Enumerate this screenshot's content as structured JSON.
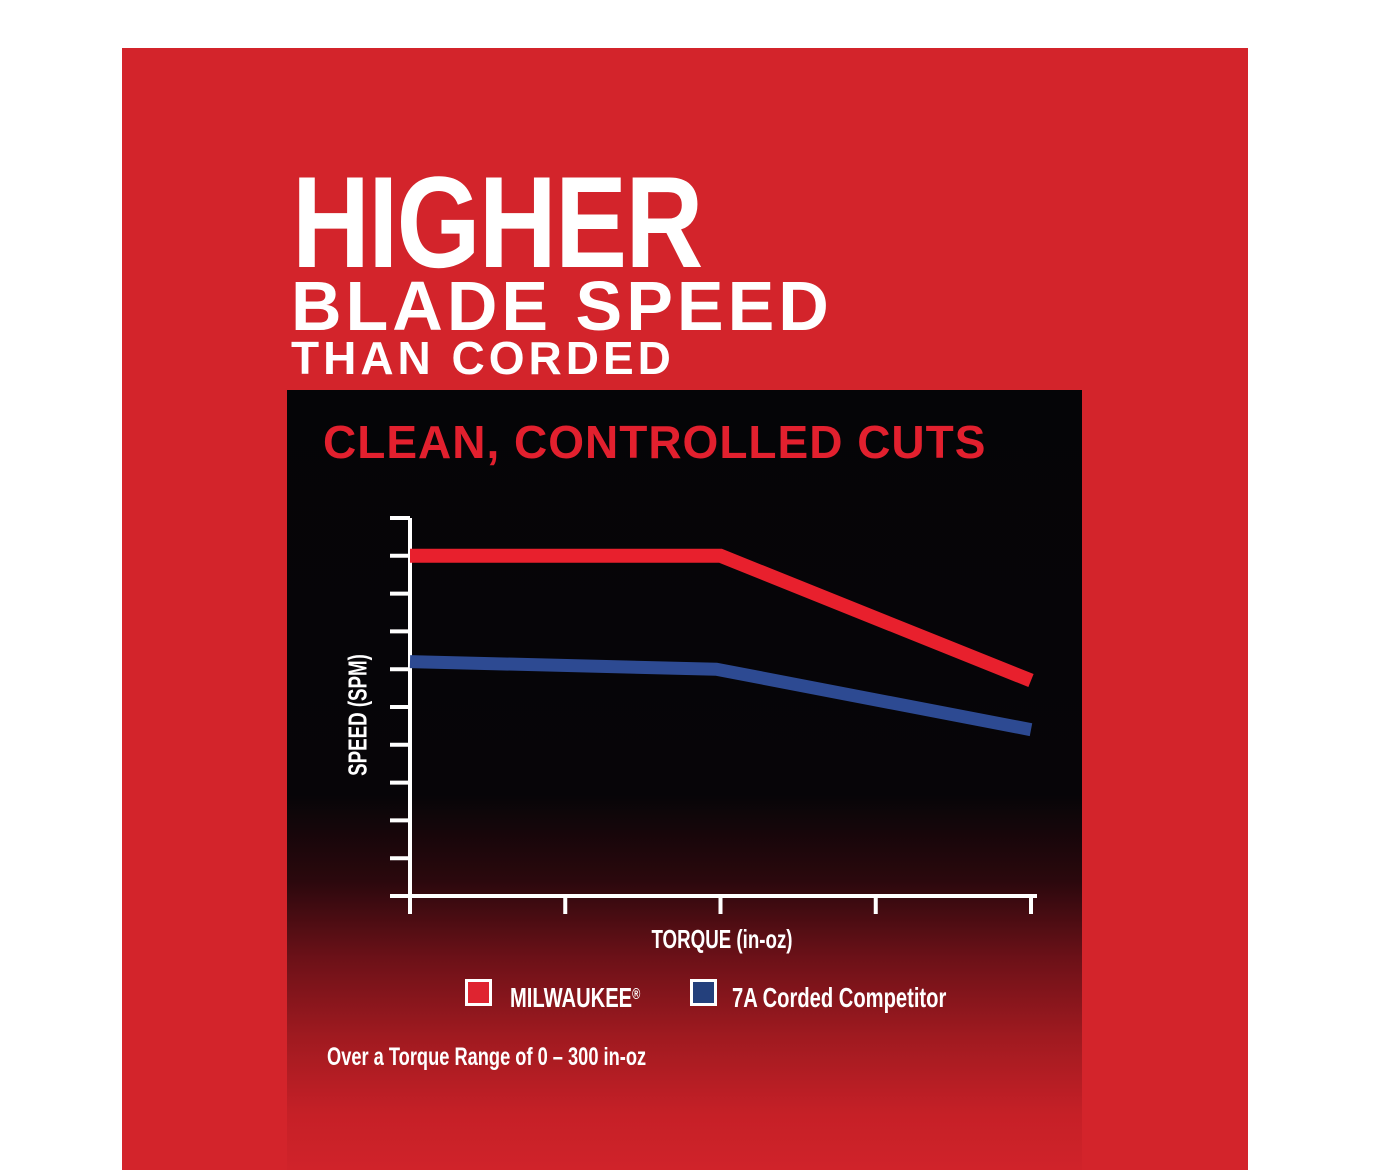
{
  "page": {
    "background": "#ffffff",
    "brand_red": "#d3242b",
    "panel_black": "#050507",
    "text_white": "#ffffff"
  },
  "headline": {
    "line1": "HIGHER",
    "line2": "BLADE SPEED",
    "line3": "THAN CORDED"
  },
  "panel": {
    "title": "CLEAN, CONTROLLED CUTS",
    "title_color": "#e2202e",
    "footnote": "Over a Torque Range of 0 – 300 in-oz"
  },
  "chart_data": {
    "type": "line",
    "title": "CLEAN, CONTROLLED CUTS",
    "xlabel": "TORQUE (in-oz)",
    "ylabel": "SPEED (SPM)",
    "x_range": [
      0,
      300
    ],
    "x_ticks": [
      0,
      75,
      150,
      225,
      300
    ],
    "x_tick_labels_shown": false,
    "y_ticks_count": 11,
    "y_tick_labels_shown": false,
    "y_value_meaning": "relative speed as fraction of y-axis height (chart shows no numeric scale)",
    "axis_color": "#ffffff",
    "grid": false,
    "legend_position": "below",
    "series": [
      {
        "name": "MILWAUKEE®",
        "color": "#e8202d",
        "stroke_width": 14,
        "points": [
          [
            0,
            0.9
          ],
          [
            150,
            0.9
          ],
          [
            300,
            0.57
          ]
        ]
      },
      {
        "name": "7A Corded Competitor",
        "color": "#2d4a92",
        "stroke_width": 13,
        "points": [
          [
            0,
            0.62
          ],
          [
            148,
            0.6
          ],
          [
            300,
            0.44
          ]
        ]
      }
    ]
  },
  "legend": {
    "items": [
      {
        "label": "MILWAUKEE",
        "mark": "®",
        "swatch_color": "#df2430"
      },
      {
        "label": "7A Corded Competitor",
        "mark": "",
        "swatch_color": "#24407c"
      }
    ]
  }
}
